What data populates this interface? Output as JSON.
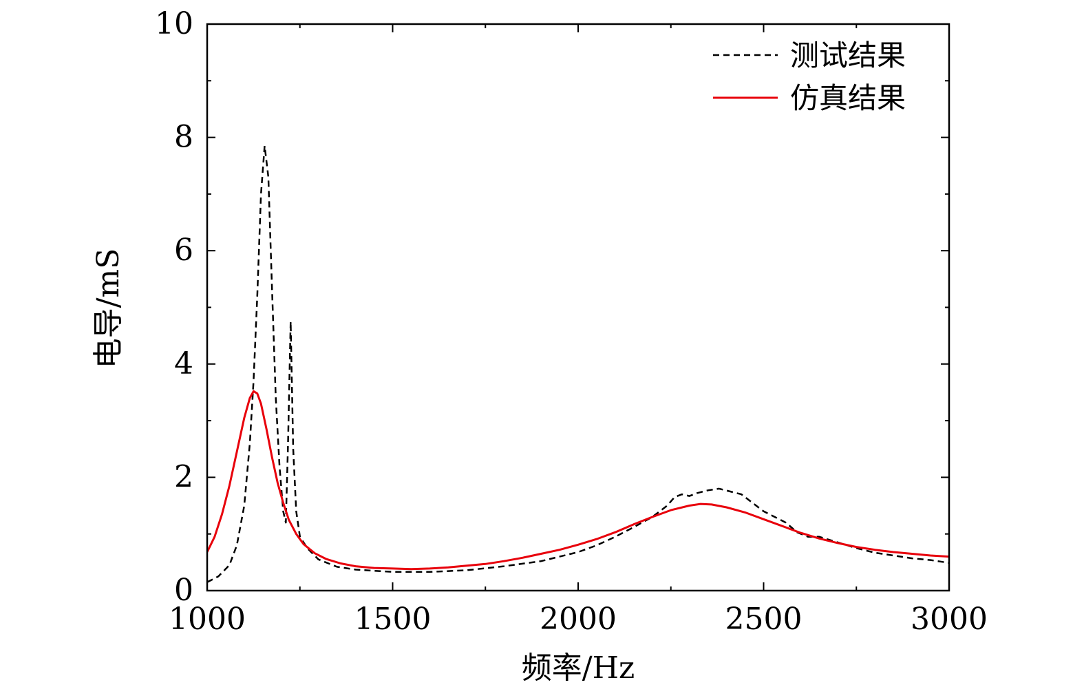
{
  "chart_data": {
    "type": "line",
    "xlabel": "频率/Hz",
    "ylabel": "电导/mS",
    "xlim": [
      1000,
      3000
    ],
    "ylim": [
      0,
      10
    ],
    "xticks": [
      1000,
      1500,
      2000,
      2500,
      3000
    ],
    "yticks": [
      0,
      2,
      4,
      6,
      8,
      10
    ],
    "x_minor_step": 250,
    "y_minor_step": 1,
    "grid": false,
    "legend_position": "top-right",
    "series": [
      {
        "name": "测试结果",
        "color": "#000000",
        "style": "dashed",
        "points": [
          [
            1000,
            0.15
          ],
          [
            1030,
            0.25
          ],
          [
            1060,
            0.45
          ],
          [
            1080,
            0.8
          ],
          [
            1100,
            1.5
          ],
          [
            1115,
            2.6
          ],
          [
            1125,
            3.7
          ],
          [
            1135,
            5.2
          ],
          [
            1145,
            7.0
          ],
          [
            1155,
            7.85
          ],
          [
            1165,
            7.3
          ],
          [
            1175,
            5.3
          ],
          [
            1185,
            3.4
          ],
          [
            1195,
            2.2
          ],
          [
            1205,
            1.4
          ],
          [
            1212,
            1.2
          ],
          [
            1218,
            2.6
          ],
          [
            1225,
            4.75
          ],
          [
            1232,
            2.5
          ],
          [
            1240,
            1.4
          ],
          [
            1250,
            0.95
          ],
          [
            1270,
            0.75
          ],
          [
            1300,
            0.55
          ],
          [
            1350,
            0.42
          ],
          [
            1400,
            0.37
          ],
          [
            1500,
            0.33
          ],
          [
            1600,
            0.33
          ],
          [
            1700,
            0.36
          ],
          [
            1800,
            0.43
          ],
          [
            1900,
            0.52
          ],
          [
            2000,
            0.68
          ],
          [
            2050,
            0.8
          ],
          [
            2100,
            0.95
          ],
          [
            2150,
            1.12
          ],
          [
            2200,
            1.3
          ],
          [
            2240,
            1.5
          ],
          [
            2260,
            1.65
          ],
          [
            2280,
            1.7
          ],
          [
            2300,
            1.67
          ],
          [
            2320,
            1.72
          ],
          [
            2350,
            1.77
          ],
          [
            2380,
            1.8
          ],
          [
            2410,
            1.75
          ],
          [
            2440,
            1.7
          ],
          [
            2470,
            1.55
          ],
          [
            2500,
            1.4
          ],
          [
            2530,
            1.3
          ],
          [
            2560,
            1.2
          ],
          [
            2590,
            1.03
          ],
          [
            2620,
            0.95
          ],
          [
            2650,
            0.95
          ],
          [
            2700,
            0.85
          ],
          [
            2750,
            0.75
          ],
          [
            2800,
            0.67
          ],
          [
            2850,
            0.62
          ],
          [
            2900,
            0.57
          ],
          [
            2950,
            0.54
          ],
          [
            3000,
            0.49
          ]
        ]
      },
      {
        "name": "仿真结果",
        "color": "#e8000b",
        "style": "solid",
        "points": [
          [
            1000,
            0.68
          ],
          [
            1020,
            0.95
          ],
          [
            1040,
            1.35
          ],
          [
            1060,
            1.85
          ],
          [
            1080,
            2.45
          ],
          [
            1100,
            3.05
          ],
          [
            1115,
            3.4
          ],
          [
            1125,
            3.52
          ],
          [
            1135,
            3.48
          ],
          [
            1145,
            3.3
          ],
          [
            1160,
            2.85
          ],
          [
            1175,
            2.35
          ],
          [
            1190,
            1.9
          ],
          [
            1205,
            1.55
          ],
          [
            1220,
            1.25
          ],
          [
            1240,
            1.0
          ],
          [
            1260,
            0.82
          ],
          [
            1290,
            0.66
          ],
          [
            1320,
            0.56
          ],
          [
            1360,
            0.48
          ],
          [
            1400,
            0.43
          ],
          [
            1450,
            0.4
          ],
          [
            1500,
            0.39
          ],
          [
            1550,
            0.38
          ],
          [
            1600,
            0.39
          ],
          [
            1650,
            0.41
          ],
          [
            1700,
            0.44
          ],
          [
            1750,
            0.47
          ],
          [
            1800,
            0.52
          ],
          [
            1850,
            0.58
          ],
          [
            1900,
            0.65
          ],
          [
            1950,
            0.72
          ],
          [
            2000,
            0.81
          ],
          [
            2050,
            0.91
          ],
          [
            2100,
            1.03
          ],
          [
            2150,
            1.17
          ],
          [
            2200,
            1.3
          ],
          [
            2250,
            1.42
          ],
          [
            2300,
            1.5
          ],
          [
            2330,
            1.53
          ],
          [
            2360,
            1.52
          ],
          [
            2400,
            1.47
          ],
          [
            2450,
            1.38
          ],
          [
            2500,
            1.26
          ],
          [
            2550,
            1.14
          ],
          [
            2600,
            1.02
          ],
          [
            2650,
            0.92
          ],
          [
            2700,
            0.84
          ],
          [
            2750,
            0.77
          ],
          [
            2800,
            0.72
          ],
          [
            2850,
            0.68
          ],
          [
            2900,
            0.65
          ],
          [
            2950,
            0.62
          ],
          [
            3000,
            0.6
          ]
        ]
      }
    ]
  }
}
